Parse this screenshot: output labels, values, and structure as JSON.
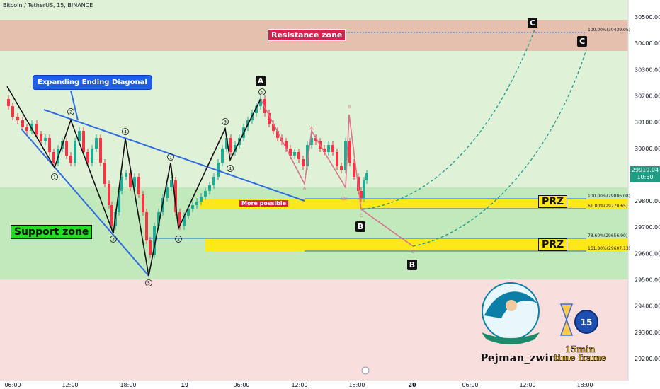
{
  "header": {
    "title": "Bitcoin / TetherUS, 15, BINANCE"
  },
  "colors": {
    "background_green": "#dff2d8",
    "background_red": "#f9dede",
    "resistance": "#e8b7a8",
    "support": "#bfe8b8",
    "prz": "#ffe81a",
    "wave_black": "#111111",
    "wave_pink": "#d9728a",
    "diagonal_blue": "#2f6be0",
    "projection_teal": "#1a9a8a",
    "candle_up": "#22ab94",
    "candle_down": "#f23645"
  },
  "zones": {
    "resistance_label": "Resistance zone",
    "support_label": "Support zone",
    "prz_label": "PRZ",
    "more_possible_label": "More possible",
    "diagonal_label": "Expanding Ending Diagonal"
  },
  "levels": [
    {
      "label": "100.00%(30439.05)",
      "price": 30439.05
    },
    {
      "label": "100.00%(29806.08)",
      "price": 29806.08
    },
    {
      "label": "61.80%(29770.65)",
      "price": 29770.65
    },
    {
      "label": "78.60%(29656.90)",
      "price": 29656.9
    },
    {
      "label": "161.80%(29607.13)",
      "price": 29607.13
    }
  ],
  "current_price": {
    "price": "29919.04",
    "countdown": "10:50"
  },
  "wave_labels": [
    "A",
    "B",
    "B",
    "C",
    "C"
  ],
  "brand": {
    "name": "Pejman_zwin",
    "timeframe_line1": "15min",
    "timeframe_line2": "time frame",
    "clock_number": "15"
  },
  "chart_data": {
    "type": "candlestick",
    "title": "Bitcoin / TetherUS, 15, BINANCE",
    "ylim": [
      29140,
      30540
    ],
    "y_ticks": [
      "30500.00",
      "30400.00",
      "30300.00",
      "30200.00",
      "30100.00",
      "30000.00",
      "29900.00",
      "29800.00",
      "29700.00",
      "29600.00",
      "29500.00",
      "29400.00",
      "29300.00",
      "29200.00"
    ],
    "x_ticks": [
      "06:00",
      "12:00",
      "18:00",
      "19",
      "06:00",
      "12:00",
      "18:00",
      "20",
      "06:00",
      "12:00",
      "18:00"
    ],
    "zones": [
      {
        "name": "Resistance zone",
        "from": 30370,
        "to": 30430
      },
      {
        "name": "Support zone",
        "from": 29500,
        "to": 29850
      },
      {
        "name": "PRZ",
        "from": 29780,
        "to": 29820
      },
      {
        "name": "PRZ",
        "from": 29585,
        "to": 29630
      }
    ]
  }
}
